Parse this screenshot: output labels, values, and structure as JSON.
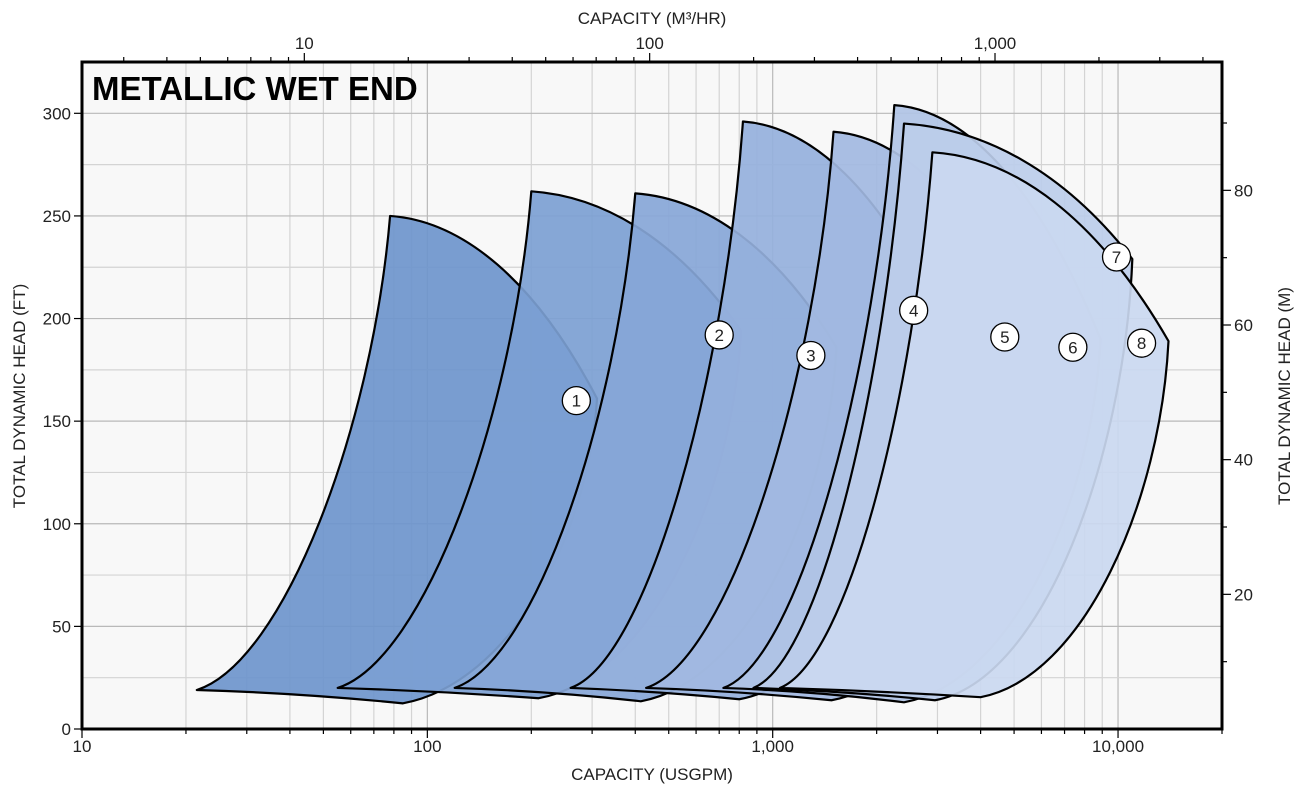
{
  "chart_data": {
    "type": "area",
    "title": "METALLIC WET END",
    "x_axis": {
      "label": "CAPACITY (USGPM)",
      "scale": "log",
      "range": [
        10,
        20000
      ],
      "tick_labels": [
        {
          "value": 10,
          "label": "10"
        },
        {
          "value": 100,
          "label": "100"
        },
        {
          "value": 1000,
          "label": "1,000"
        },
        {
          "value": 10000,
          "label": "10,000"
        }
      ]
    },
    "x2_axis": {
      "label": "CAPACITY (M³/HR)",
      "scale": "log",
      "position": "top",
      "tick_labels": [
        {
          "value": 10,
          "label": "10"
        },
        {
          "value": 100,
          "label": "100"
        },
        {
          "value": 1000,
          "label": "1,000"
        }
      ]
    },
    "y_axis": {
      "label": "TOTAL DYNAMIC HEAD (FT)",
      "range": [
        0,
        325
      ],
      "tick_labels": [
        {
          "value": 0,
          "label": "0"
        },
        {
          "value": 50,
          "label": "50"
        },
        {
          "value": 100,
          "label": "100"
        },
        {
          "value": 150,
          "label": "150"
        },
        {
          "value": 200,
          "label": "200"
        },
        {
          "value": 250,
          "label": "250"
        },
        {
          "value": 300,
          "label": "300"
        }
      ]
    },
    "y2_axis": {
      "label": "TOTAL DYNAMIC HEAD (M)",
      "position": "right",
      "tick_labels": [
        {
          "value": 20,
          "label": "20"
        },
        {
          "value": 40,
          "label": "40"
        },
        {
          "value": 60,
          "label": "60"
        },
        {
          "value": 80,
          "label": "80"
        }
      ]
    },
    "grid": true,
    "series": [
      {
        "label": "1",
        "color": "#6e95cc",
        "label_point": [
          270,
          160
        ],
        "boundary": [
          [
            21.5,
            19
          ],
          [
            85,
            12.5
          ],
          [
            310,
            161
          ],
          [
            78,
            250
          ]
        ]
      },
      {
        "label": "2",
        "color": "#7c9fd3",
        "label_point": [
          700,
          192
        ],
        "boundary": [
          [
            55,
            20
          ],
          [
            210,
            15
          ],
          [
            810,
            194
          ],
          [
            200,
            262
          ]
        ]
      },
      {
        "label": "3",
        "color": "#87a6d7",
        "label_point": [
          1290,
          182
        ],
        "boundary": [
          [
            120,
            20
          ],
          [
            415,
            13.5
          ],
          [
            1530,
            186
          ],
          [
            400,
            261
          ]
        ]
      },
      {
        "label": "4",
        "color": "#95b0dc",
        "label_point": [
          2560,
          204
        ],
        "boundary": [
          [
            260,
            20
          ],
          [
            800,
            14.5
          ],
          [
            3030,
            201
          ],
          [
            820,
            296
          ]
        ]
      },
      {
        "label": "5",
        "color": "#a2b9e1",
        "label_point": [
          4700,
          191
        ],
        "boundary": [
          [
            430,
            20
          ],
          [
            1480,
            14
          ],
          [
            5560,
            193
          ],
          [
            1500,
            291
          ]
        ]
      },
      {
        "label": "6",
        "color": "#b0c3e5",
        "label_point": [
          7400,
          186
        ],
        "boundary": [
          [
            720,
            20
          ],
          [
            2400,
            13
          ],
          [
            8900,
            190
          ],
          [
            2250,
            304
          ]
        ]
      },
      {
        "label": "7",
        "color": "#bccdea",
        "label_point": [
          9900,
          230
        ],
        "boundary": [
          [
            880,
            20
          ],
          [
            2950,
            14
          ],
          [
            11000,
            229
          ],
          [
            2400,
            295
          ]
        ]
      },
      {
        "label": "8",
        "color": "#cad8f0",
        "label_point": [
          11700,
          188
        ],
        "boundary": [
          [
            1050,
            20
          ],
          [
            4000,
            15.5
          ],
          [
            14000,
            189
          ],
          [
            2900,
            281
          ]
        ]
      }
    ]
  }
}
